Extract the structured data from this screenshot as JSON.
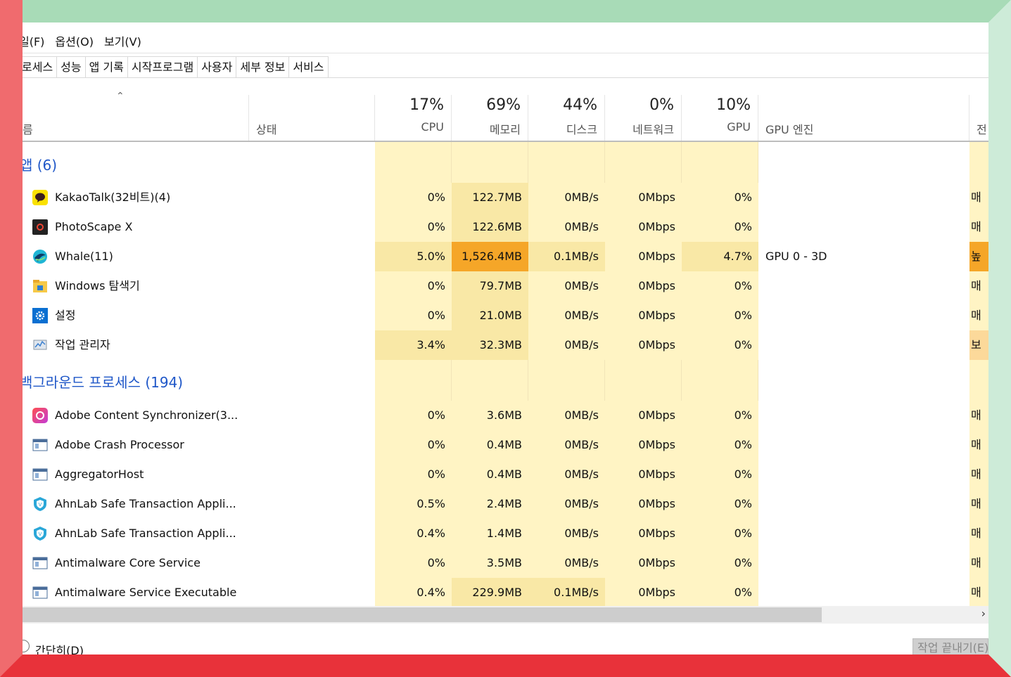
{
  "menu": {
    "file": "일(F)",
    "options": "옵션(O)",
    "view": "보기(V)"
  },
  "tabs": [
    "로세스",
    "성능",
    "앱 기록",
    "시작프로그램",
    "사용자",
    "세부 정보",
    "서비스"
  ],
  "columns": {
    "name": "름",
    "status": "상태",
    "cpu": {
      "pct": "17%",
      "label": "CPU"
    },
    "memory": {
      "pct": "69%",
      "label": "메모리"
    },
    "disk": {
      "pct": "44%",
      "label": "디스크"
    },
    "network": {
      "pct": "0%",
      "label": "네트워크"
    },
    "gpu": {
      "pct": "10%",
      "label": "GPU"
    },
    "gpu_engine": "GPU 엔진",
    "power": "전"
  },
  "groups": {
    "apps": "앱 (6)",
    "background": "백그라운드 프로세스 (194)"
  },
  "apps": [
    {
      "name": "KakaoTalk(32비트)(4)",
      "icon": "kakaotalk-icon",
      "cpu": "0%",
      "mem": "122.7MB",
      "disk": "0MB/s",
      "net": "0Mbps",
      "gpu": "0%",
      "engine": "",
      "power": "매"
    },
    {
      "name": "PhotoScape X",
      "icon": "photoscape-icon",
      "cpu": "0%",
      "mem": "122.6MB",
      "disk": "0MB/s",
      "net": "0Mbps",
      "gpu": "0%",
      "engine": "",
      "power": "매"
    },
    {
      "name": "Whale(11)",
      "icon": "whale-icon",
      "cpu": "5.0%",
      "mem": "1,526.4MB",
      "disk": "0.1MB/s",
      "net": "0Mbps",
      "gpu": "4.7%",
      "engine": "GPU 0 - 3D",
      "power": "높"
    },
    {
      "name": "Windows 탐색기",
      "icon": "explorer-icon",
      "cpu": "0%",
      "mem": "79.7MB",
      "disk": "0MB/s",
      "net": "0Mbps",
      "gpu": "0%",
      "engine": "",
      "power": "매"
    },
    {
      "name": "설정",
      "icon": "settings-icon",
      "cpu": "0%",
      "mem": "21.0MB",
      "disk": "0MB/s",
      "net": "0Mbps",
      "gpu": "0%",
      "engine": "",
      "power": "매"
    },
    {
      "name": "작업 관리자",
      "icon": "task-manager-icon",
      "cpu": "3.4%",
      "mem": "32.3MB",
      "disk": "0MB/s",
      "net": "0Mbps",
      "gpu": "0%",
      "engine": "",
      "power": "보"
    }
  ],
  "background": [
    {
      "name": "Adobe Content Synchronizer(3...",
      "icon": "adobe-cc-icon",
      "cpu": "0%",
      "mem": "3.6MB",
      "disk": "0MB/s",
      "net": "0Mbps",
      "gpu": "0%",
      "power": "매"
    },
    {
      "name": "Adobe Crash Processor",
      "icon": "app-window-icon",
      "cpu": "0%",
      "mem": "0.4MB",
      "disk": "0MB/s",
      "net": "0Mbps",
      "gpu": "0%",
      "power": "매"
    },
    {
      "name": "AggregatorHost",
      "icon": "app-window-icon",
      "cpu": "0%",
      "mem": "0.4MB",
      "disk": "0MB/s",
      "net": "0Mbps",
      "gpu": "0%",
      "power": "매"
    },
    {
      "name": "AhnLab Safe Transaction Appli...",
      "icon": "ahnlab-shield-icon",
      "cpu": "0.5%",
      "mem": "2.4MB",
      "disk": "0MB/s",
      "net": "0Mbps",
      "gpu": "0%",
      "power": "매"
    },
    {
      "name": "AhnLab Safe Transaction Appli...",
      "icon": "ahnlab-shield-icon",
      "cpu": "0.4%",
      "mem": "1.4MB",
      "disk": "0MB/s",
      "net": "0Mbps",
      "gpu": "0%",
      "power": "매"
    },
    {
      "name": "Antimalware Core Service",
      "icon": "app-window-icon",
      "cpu": "0%",
      "mem": "3.5MB",
      "disk": "0MB/s",
      "net": "0Mbps",
      "gpu": "0%",
      "power": "매"
    },
    {
      "name": "Antimalware Service Executable",
      "icon": "app-window-icon",
      "cpu": "0.4%",
      "mem": "229.9MB",
      "disk": "0.1MB/s",
      "net": "0Mbps",
      "gpu": "0%",
      "power": "매"
    }
  ],
  "footer": {
    "simple": "간단히(D)",
    "end_task": "작업 끝내기(E)"
  },
  "colors": {
    "heat_low": "#fff4c4",
    "heat_mid": "#f9e8a6",
    "heat_high": "#fcd99a",
    "heat_top": "#f5a628",
    "group_text": "#1f57c8"
  }
}
